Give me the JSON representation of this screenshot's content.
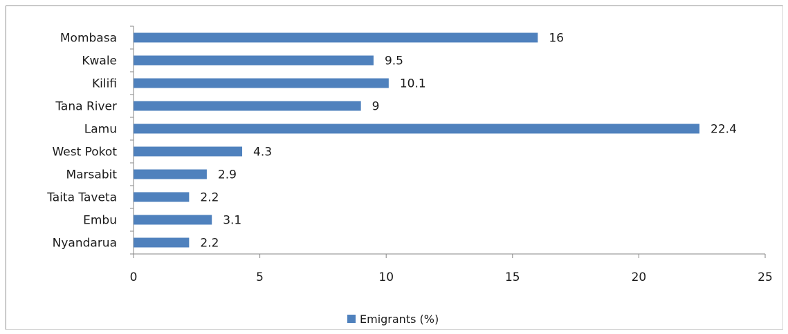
{
  "chart_data": {
    "type": "bar",
    "orientation": "horizontal",
    "categories": [
      "Mombasa",
      "Kwale",
      "Kilifi",
      "Tana River",
      "Lamu",
      "West Pokot",
      "Marsabit",
      "Taita Taveta",
      "Embu",
      "Nyandarua"
    ],
    "series": [
      {
        "name": "Emigrants (%)",
        "values": [
          16,
          9.5,
          10.1,
          9,
          22.4,
          4.3,
          2.9,
          2.2,
          3.1,
          2.2
        ],
        "data_labels": [
          "16",
          "9.5",
          "10.1",
          "9",
          "22.4",
          "4.3",
          "2.9",
          "2.2",
          "3.1",
          "2.2"
        ],
        "color": "#4f81bd"
      }
    ],
    "xlim": [
      0,
      25
    ],
    "x_ticks": [
      0,
      5,
      10,
      15,
      20,
      25
    ],
    "x_tick_labels": [
      "0",
      "5",
      "10",
      "15",
      "20",
      "25"
    ],
    "grid": false,
    "legend": {
      "position": "bottom",
      "entries": [
        "Emigrants (%)"
      ]
    }
  }
}
